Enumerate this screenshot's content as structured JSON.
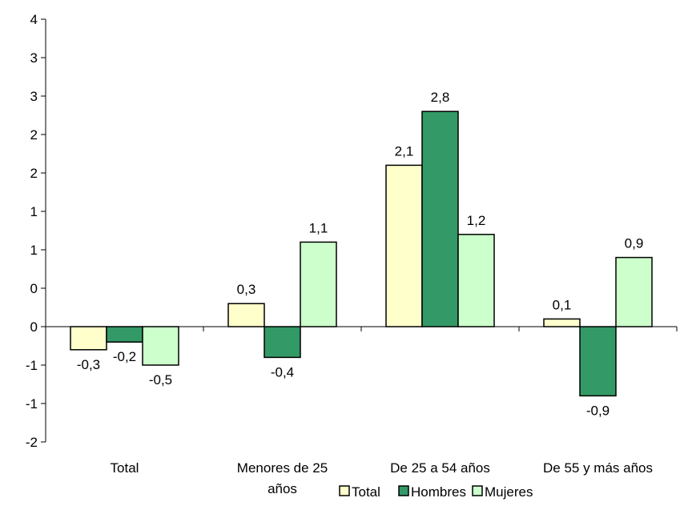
{
  "chart_data": {
    "type": "bar",
    "categories": [
      "Total",
      "Menores de 25 años",
      "De 25 a 54 años",
      "De 55 y más años"
    ],
    "series": [
      {
        "name": "Total",
        "values": [
          -0.3,
          0.3,
          2.1,
          0.1
        ],
        "labels": [
          "-0,3",
          "0,3",
          "2,1",
          "0,1"
        ],
        "color": "#FFFFCC"
      },
      {
        "name": "Hombres",
        "values": [
          -0.2,
          -0.4,
          2.8,
          -0.9
        ],
        "labels": [
          "-0,2",
          "-0,4",
          "2,8",
          "-0,9"
        ],
        "color": "#339966"
      },
      {
        "name": "Mujeres",
        "values": [
          -0.5,
          1.1,
          1.2,
          0.9
        ],
        "labels": [
          "-0,5",
          "1,1",
          "1,2",
          "0,9"
        ],
        "color": "#CCFFCC"
      }
    ],
    "y_tick_labels": [
      "-2",
      "-1",
      "-1",
      "0",
      "0",
      "1",
      "1",
      "2",
      "2",
      "3",
      "3",
      "4"
    ],
    "ylim": [
      -1.5,
      4
    ],
    "grid": false,
    "legend_position": "bottom",
    "title": "",
    "xlabel": "",
    "ylabel": ""
  }
}
